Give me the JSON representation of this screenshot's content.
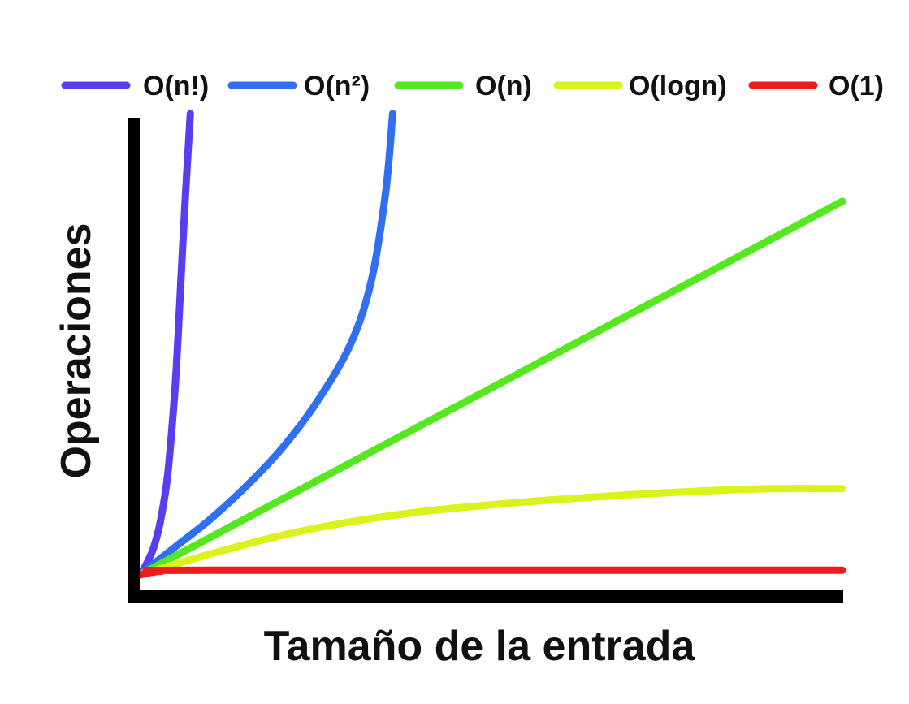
{
  "chart_data": {
    "type": "line",
    "xlabel": "Tamaño de la entrada",
    "ylabel": "Operaciones",
    "xlim": [
      0,
      10
    ],
    "ylim": [
      0,
      10
    ],
    "grid": false,
    "legend_position": "top",
    "series": [
      {
        "name": "O(n!)",
        "color": "#5b3cf0",
        "x": [
          0,
          0.1,
          0.2,
          0.3,
          0.4,
          0.5,
          0.55,
          0.6,
          0.65,
          0.7,
          0.72
        ],
        "y": [
          0.0,
          0.25,
          0.6,
          1.2,
          2.2,
          4.0,
          5.3,
          6.8,
          8.2,
          9.5,
          10.0
        ]
      },
      {
        "name": "O(n²)",
        "color": "#2f6ff0",
        "x": [
          0,
          0.5,
          1.0,
          1.5,
          2.0,
          2.5,
          3.0,
          3.3,
          3.5,
          3.6
        ],
        "y": [
          0.0,
          0.6,
          1.2,
          1.9,
          2.7,
          3.7,
          5.0,
          6.4,
          8.3,
          10.0
        ]
      },
      {
        "name": "O(n)",
        "color": "#55e81e",
        "x": [
          0,
          10
        ],
        "y": [
          0.0,
          8.1
        ]
      },
      {
        "name": "O(logn)",
        "color": "#dcf21c",
        "x": [
          0,
          1,
          2,
          3,
          4,
          5,
          6,
          7,
          8,
          9,
          10
        ],
        "y": [
          0.0,
          0.45,
          0.85,
          1.15,
          1.37,
          1.52,
          1.64,
          1.74,
          1.82,
          1.87,
          1.87
        ]
      },
      {
        "name": "O(1)",
        "color": "#ee1c1c",
        "x": [
          0,
          0.3,
          1,
          10
        ],
        "y": [
          0.0,
          0.08,
          0.1,
          0.1
        ]
      }
    ]
  }
}
